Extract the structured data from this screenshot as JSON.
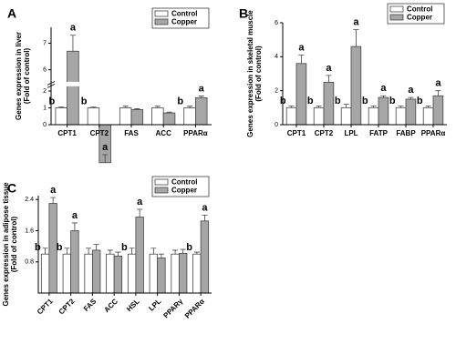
{
  "chart_data": [
    {
      "type": "bar",
      "panel": "A",
      "ylabel": [
        "Genes expression in liver",
        "(Fold of control)"
      ],
      "categories": [
        "CPT1",
        "CPT2",
        "FAS",
        "ACC",
        "PPARα"
      ],
      "series": [
        {
          "name": "Control",
          "color": "#ffffff",
          "values": [
            1,
            1,
            1,
            1,
            1
          ],
          "errors": [
            0.05,
            0.05,
            0.1,
            0.1,
            0.1
          ],
          "letters": [
            "b",
            "b",
            null,
            null,
            "b"
          ]
        },
        {
          "name": "Copper",
          "color": "#a6a6a6",
          "values": [
            6.7,
            2.5,
            0.9,
            0.7,
            1.6
          ],
          "errors": [
            0.6,
            0.3,
            0.05,
            0.05,
            0.1
          ],
          "letters": [
            "a",
            "a",
            null,
            null,
            "a"
          ]
        }
      ],
      "ylim": [
        0,
        7.6
      ],
      "ybreak": [
        2.2,
        5.6
      ],
      "yticks": [
        0,
        1,
        2,
        6,
        7
      ],
      "legend": "upper right",
      "xtick_rotation": 0
    },
    {
      "type": "bar",
      "panel": "B",
      "ylabel": [
        "Genes expression in skeletal muscle",
        "(Fold of control)"
      ],
      "categories": [
        "CPT1",
        "CPT2",
        "LPL",
        "FATP",
        "FABP",
        "PPARα"
      ],
      "series": [
        {
          "name": "Control",
          "color": "#ffffff",
          "values": [
            1,
            1,
            1,
            1,
            1,
            1
          ],
          "errors": [
            0.1,
            0.1,
            0.2,
            0.1,
            0.1,
            0.1
          ],
          "letters": [
            "b",
            "b",
            "b",
            "b",
            "b",
            "b"
          ]
        },
        {
          "name": "Copper",
          "color": "#a6a6a6",
          "values": [
            3.6,
            2.5,
            4.6,
            1.6,
            1.5,
            1.7
          ],
          "errors": [
            0.5,
            0.4,
            1.0,
            0.1,
            0.1,
            0.3
          ],
          "letters": [
            "a",
            "a",
            "a",
            "a",
            "a",
            "a"
          ]
        }
      ],
      "ylim": [
        0,
        6
      ],
      "yticks": [
        0,
        2,
        4,
        6
      ],
      "legend": "upper right",
      "xtick_rotation": 0
    },
    {
      "type": "bar",
      "panel": "C",
      "ylabel": [
        "Genes expression in adipose tissue",
        "(Fold of control)"
      ],
      "categories": [
        "CPT1",
        "CPT2",
        "FAS",
        "ACC",
        "HSL",
        "LPL",
        "PPARγ",
        "PPARα"
      ],
      "series": [
        {
          "name": "Control",
          "color": "#ffffff",
          "values": [
            1,
            1,
            1,
            1,
            1,
            1,
            1,
            1
          ],
          "errors": [
            0.15,
            0.15,
            0.15,
            0.1,
            0.15,
            0.15,
            0.1,
            0.05
          ],
          "letters": [
            "b",
            "b",
            null,
            null,
            "b",
            null,
            null,
            "b"
          ]
        },
        {
          "name": "Copper",
          "color": "#a6a6a6",
          "values": [
            2.3,
            1.6,
            1.1,
            0.95,
            1.95,
            0.9,
            1.02,
            1.85
          ],
          "errors": [
            0.15,
            0.2,
            0.15,
            0.1,
            0.2,
            0.1,
            0.1,
            0.15
          ],
          "letters": [
            "a",
            "a",
            null,
            null,
            "a",
            null,
            null,
            "a"
          ]
        }
      ],
      "ylim": [
        0,
        2.5
      ],
      "yticks": [
        0.8,
        1.6,
        2.4
      ],
      "legend": "upper right",
      "xtick_rotation": 45
    }
  ]
}
